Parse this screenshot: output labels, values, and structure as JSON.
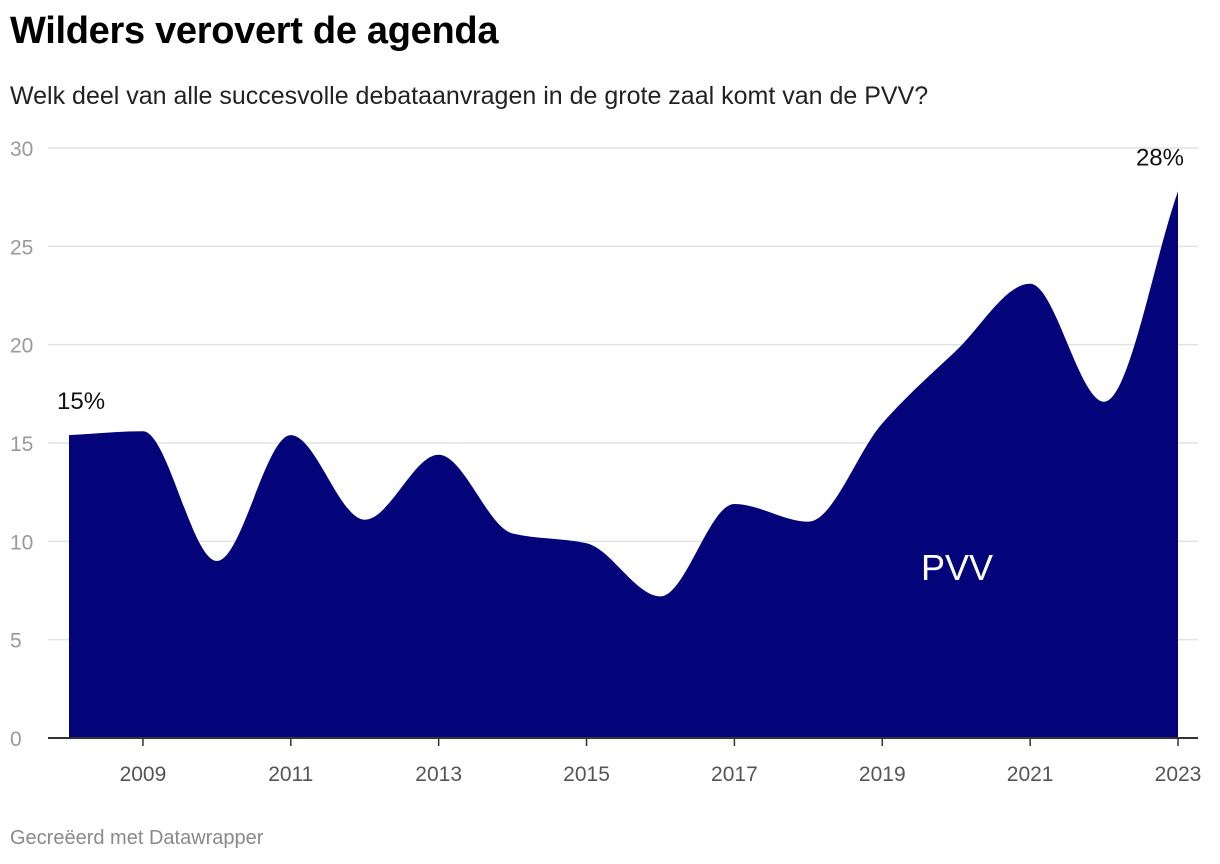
{
  "header": {
    "title": "Wilders verovert de agenda",
    "subtitle": "Welk deel van alle succesvolle debataanvragen in de grote zaal komt van de PVV?"
  },
  "footer": {
    "credit": "Gecreëerd met Datawrapper"
  },
  "colors": {
    "area": "#03037a",
    "grid": "#e2e2e2",
    "axis": "#333333"
  },
  "chart_data": {
    "type": "area",
    "title": "Wilders verovert de agenda",
    "subtitle": "Welk deel van alle succesvolle debataanvragen in de grote zaal komt van de PVV?",
    "xlabel": "",
    "ylabel": "",
    "xlim": [
      2008,
      2023
    ],
    "ylim": [
      0,
      30
    ],
    "yticks": [
      0,
      5,
      10,
      15,
      20,
      25,
      30
    ],
    "xticks": [
      "2009",
      "2011",
      "2013",
      "2015",
      "2017",
      "2019",
      "2021",
      "2023"
    ],
    "grid": true,
    "x": [
      2008,
      2009,
      2010,
      2011,
      2012,
      2013,
      2014,
      2015,
      2016,
      2017,
      2018,
      2019,
      2020,
      2021,
      2022,
      2023
    ],
    "series": [
      {
        "name": "PVV",
        "values": [
          15.4,
          15.6,
          9.0,
          15.4,
          11.1,
          14.4,
          10.4,
          9.9,
          7.2,
          11.9,
          11.0,
          16.0,
          19.7,
          23.1,
          17.1,
          27.8
        ]
      }
    ],
    "annotations": [
      {
        "text": "15%",
        "x": 2008,
        "y": 15.4
      },
      {
        "text": "28%",
        "x": 2023,
        "y": 27.8
      }
    ]
  }
}
